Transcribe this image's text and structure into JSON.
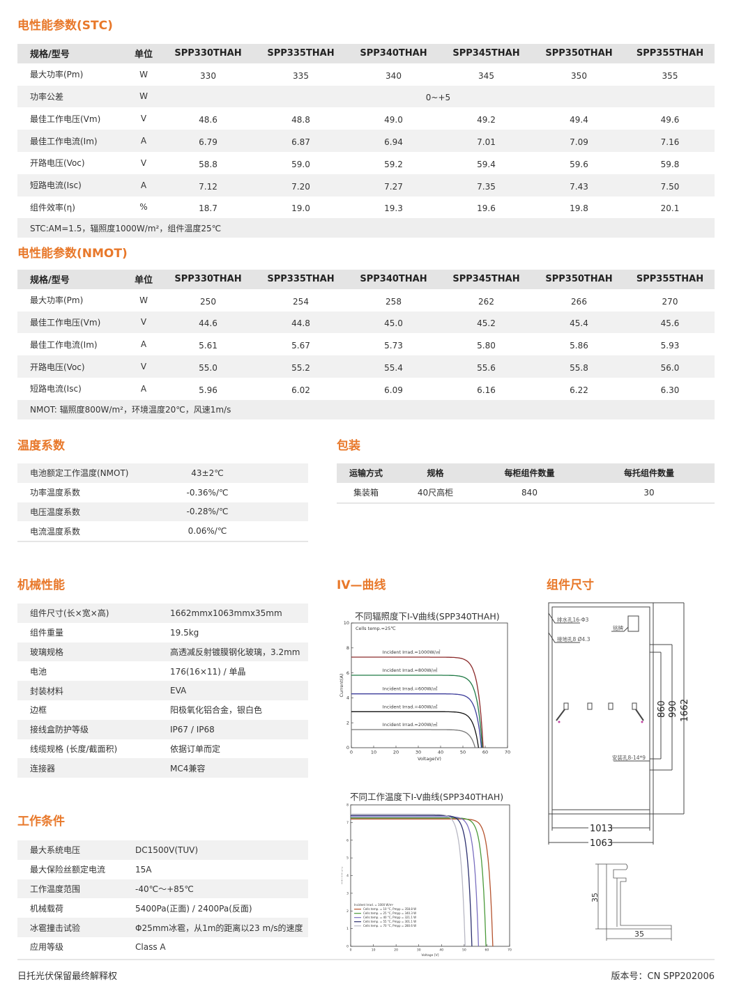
{
  "colors": {
    "accent": "#e8782a",
    "header_bg": "#e4e4e4",
    "row_alt": "#f1f1f1"
  },
  "stc": {
    "title": "电性能参数(STC)",
    "headers": [
      "规格/型号",
      "单位",
      "SPP330THAH",
      "SPP335THAH",
      "SPP340THAH",
      "SPP345THAH",
      "SPP350THAH",
      "SPP355THAH"
    ],
    "rows": [
      {
        "label": "最大功率(Pm)",
        "unit": "W",
        "values": [
          "330",
          "335",
          "340",
          "345",
          "350",
          "355"
        ]
      },
      {
        "label": "功率公差",
        "unit": "W",
        "values": "0~+5"
      },
      {
        "label": "最佳工作电压(Vm)",
        "unit": "V",
        "values": [
          "48.6",
          "48.8",
          "49.0",
          "49.2",
          "49.4",
          "49.6"
        ]
      },
      {
        "label": "最佳工作电流(Im)",
        "unit": "A",
        "values": [
          "6.79",
          "6.87",
          "6.94",
          "7.01",
          "7.09",
          "7.16"
        ]
      },
      {
        "label": "开路电压(Voc)",
        "unit": "V",
        "values": [
          "58.8",
          "59.0",
          "59.2",
          "59.4",
          "59.6",
          "59.8"
        ]
      },
      {
        "label": "短路电流(Isc)",
        "unit": "A",
        "values": [
          "7.12",
          "7.20",
          "7.27",
          "7.35",
          "7.43",
          "7.50"
        ]
      },
      {
        "label": "组件效率(η)",
        "unit": "%",
        "values": [
          "18.7",
          "19.0",
          "19.3",
          "19.6",
          "19.8",
          "20.1"
        ]
      }
    ],
    "note": "STC:AM=1.5，辐照度1000W/m²，组件温度25℃"
  },
  "nmot": {
    "title": "电性能参数(NMOT)",
    "headers": [
      "规格/型号",
      "单位",
      "SPP330THAH",
      "SPP335THAH",
      "SPP340THAH",
      "SPP345THAH",
      "SPP350THAH",
      "SPP355THAH"
    ],
    "rows": [
      {
        "label": "最大功率(Pm)",
        "unit": "W",
        "values": [
          "250",
          "254",
          "258",
          "262",
          "266",
          "270"
        ]
      },
      {
        "label": "最佳工作电压(Vm)",
        "unit": "V",
        "values": [
          "44.6",
          "44.8",
          "45.0",
          "45.2",
          "45.4",
          "45.6"
        ]
      },
      {
        "label": "最佳工作电流(Im)",
        "unit": "A",
        "values": [
          "5.61",
          "5.67",
          "5.73",
          "5.80",
          "5.86",
          "5.93"
        ]
      },
      {
        "label": "开路电压(Voc)",
        "unit": "V",
        "values": [
          "55.0",
          "55.2",
          "55.4",
          "55.6",
          "55.8",
          "56.0"
        ]
      },
      {
        "label": "短路电流(Isc)",
        "unit": "A",
        "values": [
          "5.96",
          "6.02",
          "6.09",
          "6.16",
          "6.22",
          "6.30"
        ]
      }
    ],
    "note": "NMOT: 辐照度800W/m²，环境温度20℃，风速1m/s"
  },
  "temperature": {
    "title": "温度系数",
    "rows": [
      [
        "电池额定工作温度(NMOT)",
        "43±2℃"
      ],
      [
        "功率温度系数",
        "-0.36%/℃"
      ],
      [
        "电压温度系数",
        "-0.28%/℃"
      ],
      [
        "电流温度系数",
        "0.06%/℃"
      ]
    ]
  },
  "packaging": {
    "title": "包装",
    "headers": [
      "运输方式",
      "规格",
      "每柜组件数量",
      "每托组件数量"
    ],
    "rows": [
      [
        "集装箱",
        "40尺高柜",
        "840",
        "30"
      ]
    ]
  },
  "mechanical": {
    "title": "机械性能",
    "rows": [
      [
        "组件尺寸(长×宽×高)",
        "1662mmx1063mmx35mm"
      ],
      [
        "组件重量",
        "19.5kg"
      ],
      [
        "玻璃规格",
        "高透减反射镀膜钢化玻璃，3.2mm"
      ],
      [
        "电池",
        "176(16×11) / 单晶"
      ],
      [
        "封装材料",
        "EVA"
      ],
      [
        "边框",
        "阳极氧化铝合金，银白色"
      ],
      [
        "接线盒防护等级",
        "IP67 / IP68"
      ],
      [
        "线缆规格 (长度/截面积)",
        "依据订单而定"
      ],
      [
        "连接器",
        "MC4兼容"
      ]
    ]
  },
  "working": {
    "title": "工作条件",
    "rows": [
      [
        "最大系统电压",
        "DC1500V(TUV)"
      ],
      [
        "最大保险丝额定电流",
        "15A"
      ],
      [
        "工作温度范围",
        "-40℃～+85℃"
      ],
      [
        "机械载荷",
        "5400Pa(正面) / 2400Pa(反面)"
      ],
      [
        "冰雹撞击试验",
        "Φ25mm冰雹，从1m的距离以23 m/s的速度"
      ],
      [
        "应用等级",
        "Class A"
      ]
    ]
  },
  "iv_title": "IV—曲线",
  "chart_data": [
    {
      "type": "line",
      "title": "不同辐照度下I-V曲线(SPP340THAH)",
      "xlabel": "Voltage(V)",
      "ylabel": "Current(A)",
      "xlim": [
        0,
        70
      ],
      "ylim": [
        0,
        10
      ],
      "xticks": [
        0,
        10,
        20,
        30,
        40,
        50,
        60,
        70
      ],
      "yticks": [
        0,
        2,
        4,
        6,
        8,
        10
      ],
      "annotation": "Cells temp.=25℃",
      "series": [
        {
          "name": "Incident Irrad.=1000W/㎡",
          "isc": 7.26,
          "voc": 59.1,
          "color": "#8b2a2a"
        },
        {
          "name": "Incident Irrad.=800W/㎡",
          "isc": 5.81,
          "voc": 58.7,
          "color": "#1f7a45"
        },
        {
          "name": "Incident Irrad.=600W/㎡",
          "isc": 4.32,
          "voc": 58.3,
          "color": "#3b3b9a"
        },
        {
          "name": "Incident Irrad.=400W/㎡",
          "isc": 2.89,
          "voc": 57.0,
          "color": "#111111"
        },
        {
          "name": "Incident Irrad.=200W/㎡",
          "isc": 1.45,
          "voc": 55.5,
          "color": "#777777"
        }
      ]
    },
    {
      "type": "line",
      "title": "不同工作温度下I-V曲线(SPP340THAH)",
      "xlabel": "Voltage [V]",
      "ylabel": "Current [A]",
      "xlim": [
        0,
        70
      ],
      "ylim": [
        0,
        8
      ],
      "xticks": [
        0,
        10,
        20,
        30,
        40,
        50,
        60,
        70
      ],
      "yticks": [
        0,
        1,
        2,
        3,
        4,
        5,
        6,
        7,
        8
      ],
      "legend_title": "Incident Irrad. = 1000 W/m²",
      "legend": "bottom-left",
      "series": [
        {
          "name": "Cells temp. = 10 °C, Pmpp = 358.8 W",
          "isc": 7.2,
          "voc": 62.6,
          "color": "#b5532e"
        },
        {
          "name": "Cells temp. = 25 °C, Pmpp = 340.3 W",
          "isc": 7.26,
          "voc": 59.6,
          "color": "#4a9a3a"
        },
        {
          "name": "Cells temp. = 40 °C, Pmpp = 321.1 W",
          "isc": 7.33,
          "voc": 56.3,
          "color": "#7a6fc0"
        },
        {
          "name": "Cells temp. = 55 °C, Pmpp = 301.1 W",
          "isc": 7.4,
          "voc": 53.4,
          "color": "#2b2f6e"
        },
        {
          "name": "Cells temp. = 70 °C, Pmpp = 280.6 W",
          "isc": 7.47,
          "voc": 50.4,
          "color": "#b8b8c4"
        }
      ]
    }
  ],
  "dimensions": {
    "title": "组件尺寸",
    "drain_hole": "排水孔16-Φ3",
    "ground_hole": "接地孔8 Ø4.3",
    "nameplate": "铭牌",
    "mount_hole": "安装孔8-14*9",
    "dim_860": "860",
    "dim_990": "990",
    "dim_1662": "1662",
    "dim_1013": "1013",
    "dim_1063": "1063",
    "frame_height": "35",
    "frame_width": "35"
  },
  "footer": {
    "left": "日托光伏保留最终解释权",
    "right": "版本号：CN SPP202006"
  }
}
